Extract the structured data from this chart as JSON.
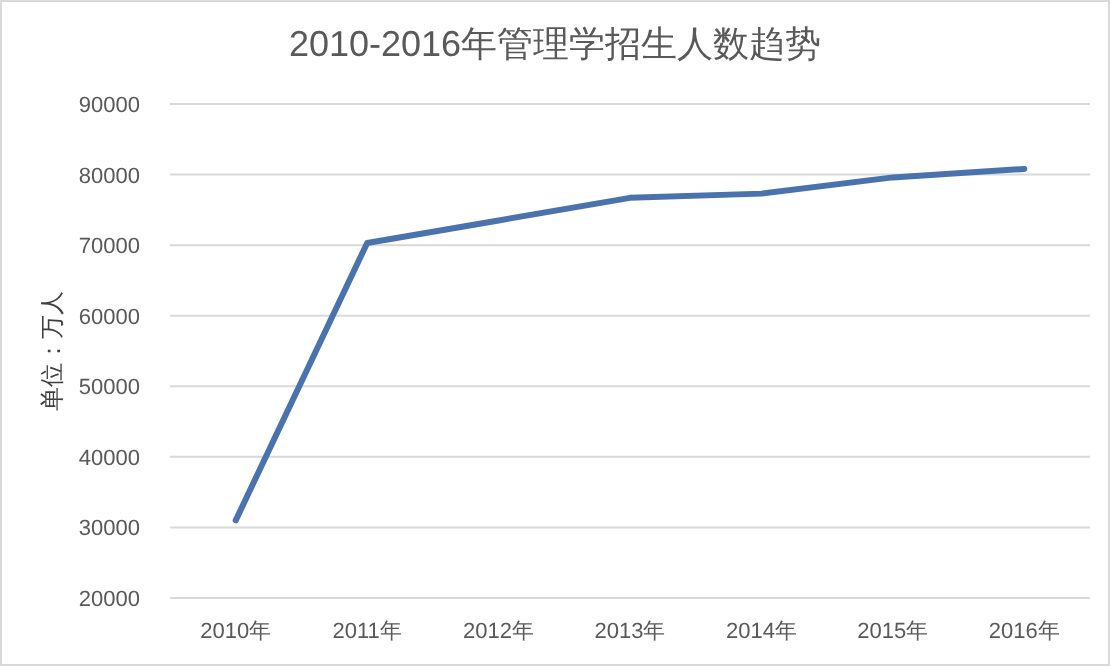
{
  "chart_data": {
    "type": "line",
    "title": "2010-2016年管理学招生人数趋势",
    "ylabel": "单位：万人",
    "categories": [
      "2010年",
      "2011年",
      "2012年",
      "2013年",
      "2014年",
      "2015年",
      "2016年"
    ],
    "series": [
      {
        "color": "#4a73ae",
        "values": [
          31000,
          70300,
          73500,
          76700,
          77300,
          79600,
          80800
        ]
      }
    ],
    "ylim": [
      20000,
      90000
    ],
    "yticks": [
      20000,
      30000,
      40000,
      50000,
      60000,
      70000,
      80000,
      90000
    ],
    "grid": "y",
    "marker": "none",
    "line_style": "solid"
  }
}
